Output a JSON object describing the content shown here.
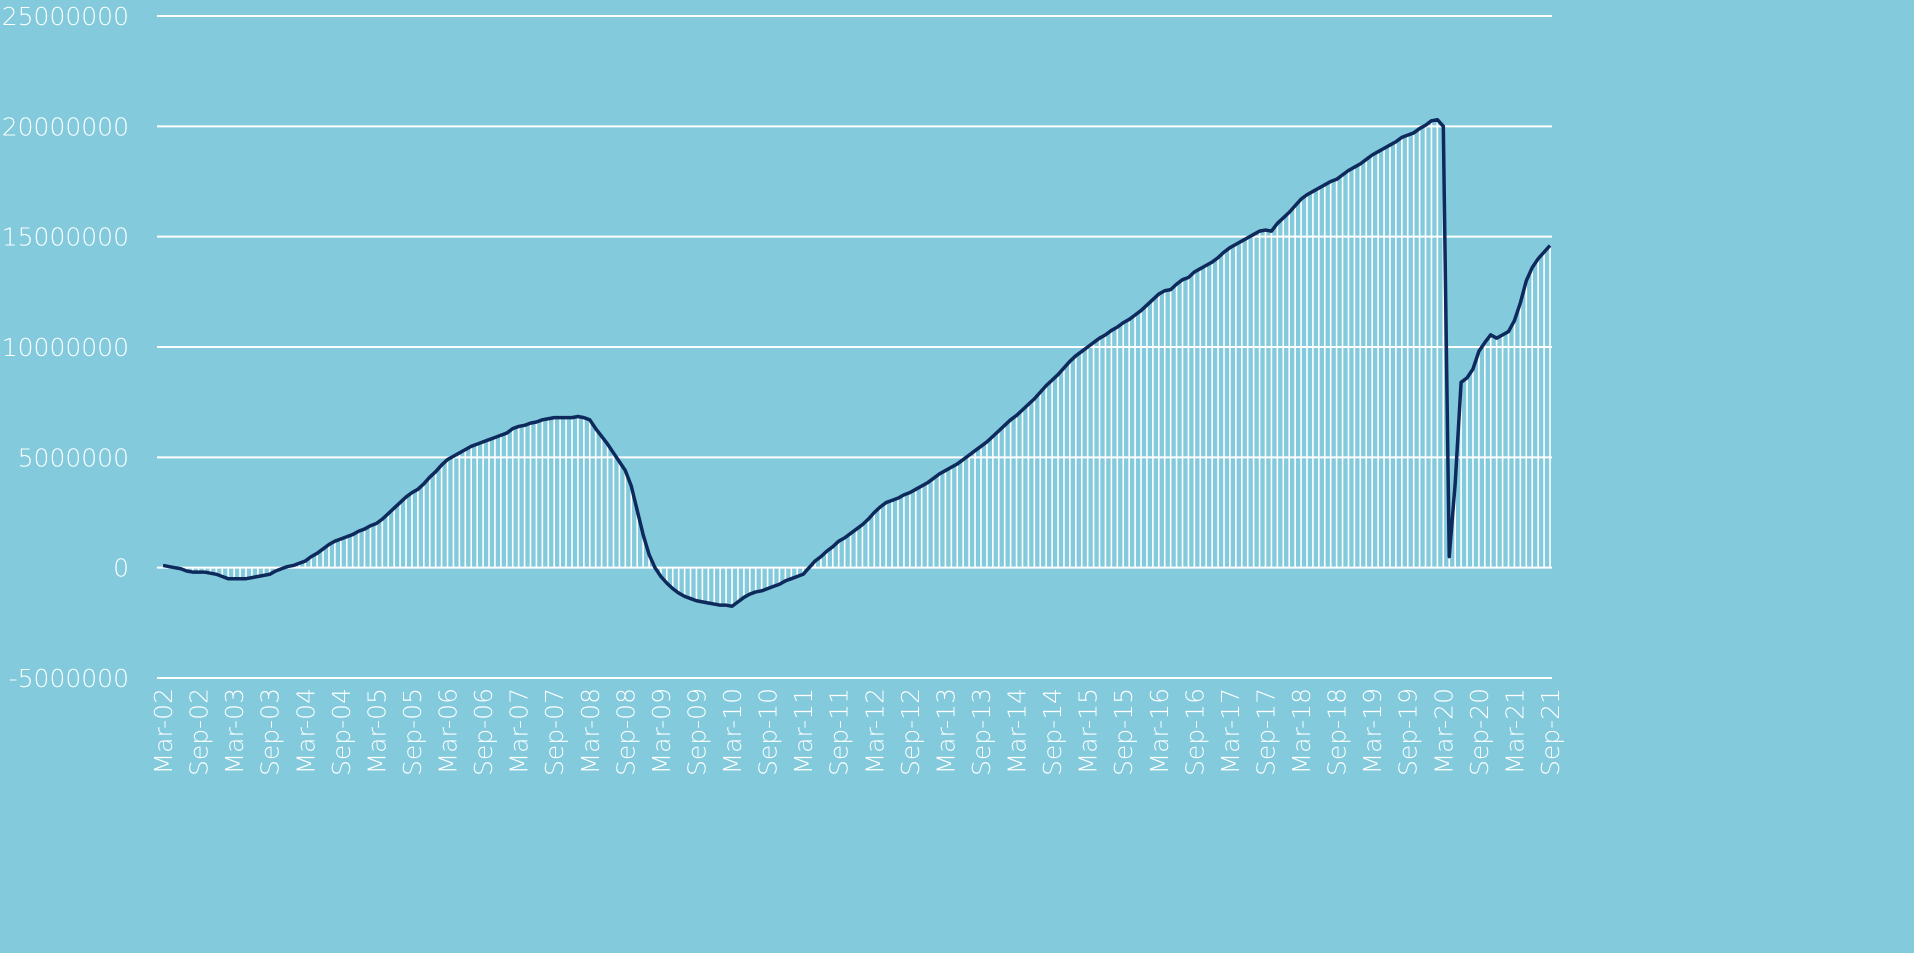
{
  "chart_data": {
    "type": "bar",
    "color": "#0e2a5c",
    "bar_color": "#ffffff",
    "grid": true,
    "grid_color": "#ffffff",
    "background": "#82cadc",
    "ylim": [
      -5000000,
      25000000
    ],
    "yticks": [
      -5000000,
      0,
      5000000,
      10000000,
      15000000,
      20000000,
      25000000
    ],
    "categories": [
      "Mar-02",
      null,
      null,
      null,
      null,
      null,
      "Sep-02",
      null,
      null,
      null,
      null,
      null,
      "Mar-03",
      null,
      null,
      null,
      null,
      null,
      "Sep-03",
      null,
      null,
      null,
      null,
      null,
      "Mar-04",
      null,
      null,
      null,
      null,
      null,
      "Sep-04",
      null,
      null,
      null,
      null,
      null,
      "Mar-05",
      null,
      null,
      null,
      null,
      null,
      "Sep-05",
      null,
      null,
      null,
      null,
      null,
      "Mar-06",
      null,
      null,
      null,
      null,
      null,
      "Sep-06",
      null,
      null,
      null,
      null,
      null,
      "Mar-07",
      null,
      null,
      null,
      null,
      null,
      "Sep-07",
      null,
      null,
      null,
      null,
      null,
      "Mar-08",
      null,
      null,
      null,
      null,
      null,
      "Sep-08",
      null,
      null,
      null,
      null,
      null,
      "Mar-09",
      null,
      null,
      null,
      null,
      null,
      "Sep-09",
      null,
      null,
      null,
      null,
      null,
      "Mar-10",
      null,
      null,
      null,
      null,
      null,
      "Sep-10",
      null,
      null,
      null,
      null,
      null,
      "Mar-11",
      null,
      null,
      null,
      null,
      null,
      "Sep-11",
      null,
      null,
      null,
      null,
      null,
      "Mar-12",
      null,
      null,
      null,
      null,
      null,
      "Sep-12",
      null,
      null,
      null,
      null,
      null,
      "Mar-13",
      null,
      null,
      null,
      null,
      null,
      "Sep-13",
      null,
      null,
      null,
      null,
      null,
      "Mar-14",
      null,
      null,
      null,
      null,
      null,
      "Sep-14",
      null,
      null,
      null,
      null,
      null,
      "Mar-15",
      null,
      null,
      null,
      null,
      null,
      "Sep-15",
      null,
      null,
      null,
      null,
      null,
      "Mar-16",
      null,
      null,
      null,
      null,
      null,
      "Sep-16",
      null,
      null,
      null,
      null,
      null,
      "Mar-17",
      null,
      null,
      null,
      null,
      null,
      "Sep-17",
      null,
      null,
      null,
      null,
      null,
      "Mar-18",
      null,
      null,
      null,
      null,
      null,
      "Sep-18",
      null,
      null,
      null,
      null,
      null,
      "Mar-19",
      null,
      null,
      null,
      null,
      null,
      "Sep-19",
      null,
      null,
      null,
      null,
      null,
      "Mar-20",
      null,
      null,
      null,
      null,
      null,
      "Sep-20",
      null,
      null,
      null,
      null,
      null,
      "Mar-21",
      null,
      null,
      null,
      null,
      null,
      "Sep-21"
    ],
    "values": [
      100000,
      50000,
      0,
      -50000,
      -150000,
      -200000,
      -200000,
      -200000,
      -250000,
      -300000,
      -400000,
      -500000,
      -500000,
      -500000,
      -500000,
      -450000,
      -400000,
      -350000,
      -300000,
      -150000,
      -50000,
      50000,
      100000,
      200000,
      300000,
      500000,
      650000,
      850000,
      1050000,
      1200000,
      1300000,
      1400000,
      1500000,
      1650000,
      1750000,
      1900000,
      2000000,
      2200000,
      2450000,
      2700000,
      2950000,
      3200000,
      3400000,
      3550000,
      3800000,
      4100000,
      4350000,
      4650000,
      4900000,
      5050000,
      5200000,
      5350000,
      5500000,
      5600000,
      5700000,
      5800000,
      5900000,
      6000000,
      6100000,
      6300000,
      6400000,
      6450000,
      6550000,
      6600000,
      6700000,
      6750000,
      6800000,
      6800000,
      6800000,
      6800000,
      6850000,
      6800000,
      6700000,
      6300000,
      5950000,
      5600000,
      5200000,
      4800000,
      4400000,
      3700000,
      2600000,
      1500000,
      600000,
      0,
      -400000,
      -700000,
      -950000,
      -1150000,
      -1300000,
      -1400000,
      -1500000,
      -1550000,
      -1600000,
      -1650000,
      -1700000,
      -1700000,
      -1750000,
      -1550000,
      -1350000,
      -1200000,
      -1100000,
      -1050000,
      -950000,
      -850000,
      -750000,
      -600000,
      -500000,
      -400000,
      -300000,
      0,
      300000,
      500000,
      750000,
      950000,
      1200000,
      1350000,
      1550000,
      1750000,
      1950000,
      2200000,
      2500000,
      2750000,
      2950000,
      3050000,
      3150000,
      3300000,
      3400000,
      3550000,
      3700000,
      3850000,
      4050000,
      4250000,
      4400000,
      4550000,
      4700000,
      4900000,
      5100000,
      5300000,
      5500000,
      5700000,
      5950000,
      6200000,
      6450000,
      6700000,
      6900000,
      7150000,
      7400000,
      7650000,
      7950000,
      8250000,
      8500000,
      8750000,
      9050000,
      9350000,
      9600000,
      9800000,
      10000000,
      10200000,
      10400000,
      10550000,
      10750000,
      10900000,
      11100000,
      11250000,
      11450000,
      11650000,
      11900000,
      12150000,
      12400000,
      12550000,
      12600000,
      12850000,
      13050000,
      13150000,
      13400000,
      13550000,
      13700000,
      13850000,
      14050000,
      14300000,
      14500000,
      14650000,
      14800000,
      14950000,
      15100000,
      15250000,
      15300000,
      15250000,
      15600000,
      15850000,
      16100000,
      16400000,
      16700000,
      16900000,
      17050000,
      17200000,
      17350000,
      17500000,
      17600000,
      17800000,
      18000000,
      18150000,
      18300000,
      18500000,
      18700000,
      18850000,
      19000000,
      19150000,
      19300000,
      19500000,
      19600000,
      19700000,
      19900000,
      20050000,
      20250000,
      20300000,
      20000000,
      500000,
      3800000,
      8400000,
      8600000,
      9000000,
      9800000,
      10200000,
      10550000,
      10400000,
      10550000,
      10700000,
      11200000,
      12000000,
      13000000,
      13600000,
      14000000,
      14300000,
      14600000
    ]
  }
}
